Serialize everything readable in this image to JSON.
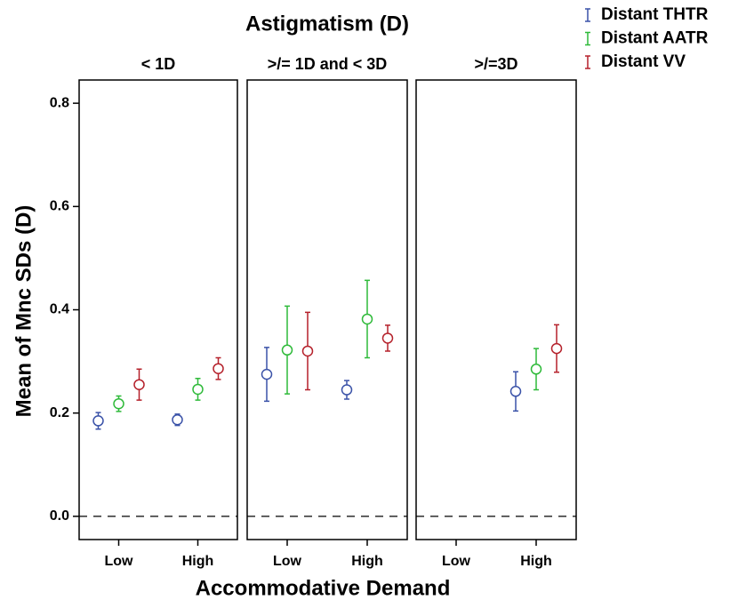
{
  "chart_data": {
    "type": "errorbar",
    "title": "Astigmatism (D)",
    "xlabel": "Accommodative Demand",
    "ylabel": "Mean of Mnc SDs (D)",
    "ylim": [
      -0.045,
      0.845
    ],
    "yticks": [
      {
        "value": 0,
        "label": "0.0"
      },
      {
        "value": 0.2,
        "label": "0.2"
      },
      {
        "value": 0.4,
        "label": "0.4"
      },
      {
        "value": 0.6,
        "label": "0.6"
      },
      {
        "value": 0.8,
        "label": "0.8"
      }
    ],
    "hline": 0,
    "categories": [
      "Low",
      "High"
    ],
    "series": [
      {
        "name": "Distant THTR",
        "color": "#3a52a8"
      },
      {
        "name": "Distant AATR",
        "color": "#2fba3a"
      },
      {
        "name": "Distant VV",
        "color": "#b5212b"
      }
    ],
    "panels": [
      {
        "title": "< 1D",
        "series": [
          {
            "values": [
              0.185,
              0.187
            ],
            "errors": [
              0.016,
              0.011
            ]
          },
          {
            "values": [
              0.218,
              0.246
            ],
            "errors": [
              0.015,
              0.021
            ]
          },
          {
            "values": [
              0.255,
              0.286
            ],
            "errors": [
              0.03,
              0.021
            ]
          }
        ]
      },
      {
        "title": ">/= 1D and < 3D",
        "series": [
          {
            "values": [
              0.275,
              0.245
            ],
            "errors": [
              0.052,
              0.018
            ]
          },
          {
            "values": [
              0.322,
              0.382
            ],
            "errors": [
              0.085,
              0.075
            ]
          },
          {
            "values": [
              0.32,
              0.345
            ],
            "errors": [
              0.075,
              0.025
            ]
          }
        ]
      },
      {
        "title": ">/=3D",
        "series": [
          {
            "values": [
              null,
              0.242
            ],
            "errors": [
              null,
              0.038
            ]
          },
          {
            "values": [
              null,
              0.285
            ],
            "errors": [
              null,
              0.04
            ]
          },
          {
            "values": [
              null,
              0.325
            ],
            "errors": [
              null,
              0.046
            ]
          }
        ]
      }
    ]
  }
}
